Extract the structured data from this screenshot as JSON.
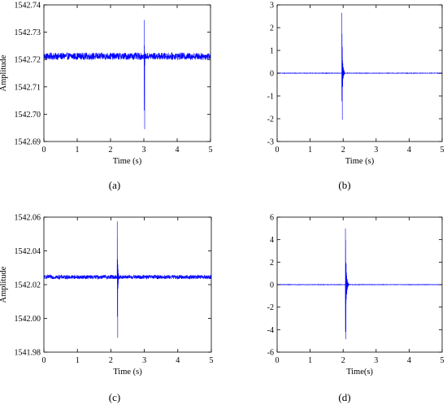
{
  "figure": {
    "captions": [
      "(a)",
      "(b)",
      "(c)",
      "(d)"
    ]
  },
  "chart_data": [
    {
      "type": "line",
      "panel": "(a)",
      "xlabel": "Time (s)",
      "ylabel": "Amplitude",
      "xlim": [
        0,
        5
      ],
      "ylim": [
        1542.69,
        1542.74
      ],
      "xticks": [
        0,
        1,
        2,
        3,
        4,
        5
      ],
      "yticks": [
        "1542.69",
        "1542.70",
        "1542.71",
        "1542.72",
        "1542.73",
        "1542.74"
      ],
      "grid": false,
      "color": "#0000ff",
      "series": [
        {
          "baseline": 1542.7212,
          "noise_amplitude": 0.0013,
          "event_time": 3.01,
          "event_peak_max": 1542.7345,
          "event_peak_min": 1542.6945,
          "decay_time": 0.04,
          "points": [
            [
              0,
              1542.7212
            ],
            [
              3.0,
              1542.7212
            ],
            [
              3.005,
              1542.7345
            ],
            [
              3.01,
              1542.6945
            ],
            [
              3.05,
              1542.7212
            ],
            [
              5,
              1542.7212
            ]
          ]
        }
      ]
    },
    {
      "type": "line",
      "panel": "(b)",
      "xlabel": "Time (s)",
      "ylabel": "",
      "xlim": [
        0,
        5
      ],
      "ylim": [
        -3,
        3
      ],
      "xticks": [
        0,
        1,
        2,
        3,
        4,
        5
      ],
      "yticks": [
        "-3",
        "-2",
        "-1",
        "0",
        "1",
        "2",
        "3"
      ],
      "grid": false,
      "color": "#0000ff",
      "series": [
        {
          "baseline": 0,
          "noise_amplitude": 0.01,
          "event_time": 1.96,
          "event_peak_max": 2.65,
          "event_peak_min": -2.05,
          "decay_time": 0.09,
          "points": [
            [
              0,
              0
            ],
            [
              1.95,
              0
            ],
            [
              1.96,
              2.65
            ],
            [
              1.965,
              -2.05
            ],
            [
              2.05,
              0
            ],
            [
              5,
              0
            ]
          ]
        }
      ]
    },
    {
      "type": "line",
      "panel": "(c)",
      "xlabel": "Time (s)",
      "ylabel": "Amplitude",
      "xlim": [
        0,
        5
      ],
      "ylim": [
        1541.98,
        1542.06
      ],
      "xticks": [
        0,
        1,
        2,
        3,
        4,
        5
      ],
      "yticks": [
        "1541.98",
        "1542.00",
        "1542.02",
        "1542.04",
        "1542.06"
      ],
      "grid": false,
      "color": "#0000ff",
      "series": [
        {
          "baseline": 1542.0245,
          "noise_amplitude": 0.0012,
          "event_time": 2.19,
          "event_peak_max": 1542.0575,
          "event_peak_min": 1541.9885,
          "decay_time": 0.06,
          "points": [
            [
              0,
              1542.0245
            ],
            [
              2.18,
              1542.0245
            ],
            [
              2.185,
              1542.0575
            ],
            [
              2.19,
              1541.9885
            ],
            [
              2.25,
              1542.0245
            ],
            [
              5,
              1542.0245
            ]
          ]
        }
      ]
    },
    {
      "type": "line",
      "panel": "(d)",
      "xlabel": "Time(s)",
      "ylabel": "",
      "xlim": [
        0,
        5
      ],
      "ylim": [
        -6,
        6
      ],
      "xticks": [
        0,
        1,
        2,
        3,
        4,
        5
      ],
      "yticks": [
        "-6",
        "-4",
        "-2",
        "0",
        "2",
        "4",
        "6"
      ],
      "grid": false,
      "color": "#0000ff",
      "series": [
        {
          "baseline": 0,
          "noise_amplitude": 0.02,
          "event_time": 2.07,
          "event_peak_max": 5.0,
          "event_peak_min": -4.85,
          "decay_time": 0.1,
          "points": [
            [
              0,
              0
            ],
            [
              2.06,
              0
            ],
            [
              2.07,
              5.0
            ],
            [
              2.075,
              -4.85
            ],
            [
              2.17,
              0
            ],
            [
              5,
              0
            ]
          ]
        }
      ]
    }
  ]
}
